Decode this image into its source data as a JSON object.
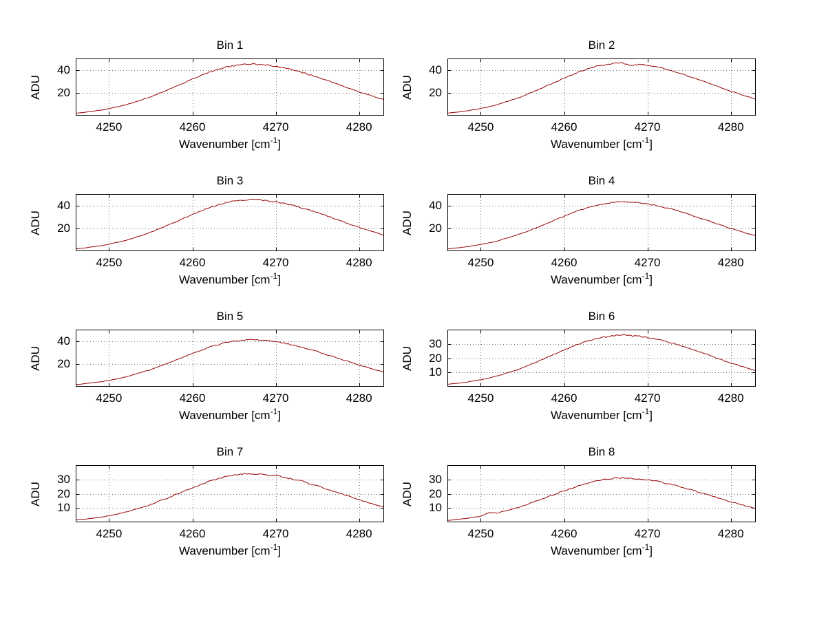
{
  "figure": {
    "background": "#ffffff",
    "axis_color": "#000000",
    "grid_color": "#6f6f6f",
    "line_color": "#990000",
    "ylabel": "ADU",
    "xlabel_main": "Wavenumber [cm",
    "xlabel_sup": "-1",
    "xlabel_close": "]"
  },
  "chart_data": {
    "type": "line",
    "layout": {
      "rows": 4,
      "cols": 2,
      "grid": "dotted",
      "legend": "none"
    },
    "xlim": [
      4246,
      4283
    ],
    "x_start": 4246,
    "x_step": 1,
    "xticks": [
      4250,
      4260,
      4270,
      4280
    ],
    "xlabel": "Wavenumber [cm^-1]",
    "ylabel": "ADU",
    "subplots": [
      {
        "title": "Bin 1",
        "ylim": [
          0,
          50
        ],
        "yticks": [
          20,
          40
        ],
        "peak_adu": 45,
        "y": [
          2.1,
          2.9,
          3.7,
          4.8,
          6.2,
          7.7,
          9.4,
          11.7,
          14.0,
          16.5,
          19.6,
          22.4,
          25.8,
          28.8,
          32.1,
          35.0,
          37.9,
          40.2,
          42.4,
          43.7,
          44.8,
          45.1,
          44.7,
          44.3,
          43.1,
          42.0,
          40.1,
          38.3,
          35.9,
          33.8,
          31.1,
          28.7,
          25.9,
          23.5,
          20.8,
          18.6,
          16.1,
          14.1
        ]
      },
      {
        "title": "Bin 2",
        "ylim": [
          0,
          50
        ],
        "yticks": [
          20,
          40
        ],
        "peak_adu": 46,
        "y": [
          2.2,
          3.0,
          3.8,
          4.9,
          6.3,
          7.8,
          9.6,
          12.0,
          14.3,
          16.9,
          20.0,
          22.9,
          26.4,
          29.4,
          32.9,
          35.7,
          38.8,
          41.1,
          43.3,
          44.7,
          45.8,
          46.1,
          43.4,
          45.1,
          44.3,
          42.7,
          41.2,
          39.0,
          36.9,
          34.3,
          31.8,
          29.3,
          26.5,
          24.0,
          21.3,
          19.0,
          16.5,
          14.4
        ]
      },
      {
        "title": "Bin 3",
        "ylim": [
          0,
          50
        ],
        "yticks": [
          20,
          40
        ],
        "peak_adu": 45,
        "y": [
          2.1,
          2.8,
          3.8,
          4.7,
          6.1,
          7.8,
          9.5,
          11.6,
          14.1,
          16.6,
          19.5,
          22.6,
          25.6,
          29.0,
          31.9,
          35.2,
          37.7,
          40.4,
          42.2,
          43.9,
          44.6,
          45.2,
          44.9,
          44.1,
          43.3,
          41.8,
          40.3,
          38.1,
          36.1,
          33.6,
          31.3,
          28.5,
          26.1,
          23.3,
          21.0,
          18.4,
          16.3,
          14.0
        ]
      },
      {
        "title": "Bin 4",
        "ylim": [
          0,
          50
        ],
        "yticks": [
          20,
          40
        ],
        "peak_adu": 43,
        "y": [
          2.0,
          2.7,
          3.6,
          4.6,
          5.9,
          7.3,
          9.0,
          11.2,
          13.4,
          15.8,
          18.7,
          21.4,
          24.7,
          27.5,
          30.7,
          33.4,
          36.3,
          38.4,
          40.5,
          41.8,
          42.8,
          43.1,
          42.7,
          42.3,
          41.2,
          40.1,
          38.3,
          36.6,
          34.3,
          32.3,
          29.7,
          27.4,
          24.7,
          22.5,
          19.9,
          17.8,
          15.4,
          13.5
        ]
      },
      {
        "title": "Bin 5",
        "ylim": [
          0,
          50
        ],
        "yticks": [
          20,
          40
        ],
        "peak_adu": 41,
        "y": [
          1.9,
          2.6,
          3.5,
          4.3,
          5.6,
          7.0,
          8.6,
          10.7,
          12.8,
          15.0,
          17.9,
          20.4,
          23.5,
          26.2,
          29.3,
          31.8,
          34.6,
          36.6,
          38.6,
          39.8,
          40.8,
          41.1,
          40.7,
          40.4,
          39.3,
          38.2,
          36.5,
          34.9,
          32.7,
          30.8,
          28.3,
          26.1,
          23.6,
          21.4,
          19.0,
          17.0,
          14.7,
          12.8
        ]
      },
      {
        "title": "Bin 6",
        "ylim": [
          0,
          40
        ],
        "yticks": [
          10,
          20,
          30
        ],
        "peak_adu": 36,
        "y": [
          1.7,
          2.3,
          3.0,
          3.9,
          4.9,
          6.1,
          7.5,
          9.4,
          11.2,
          13.2,
          15.7,
          17.9,
          20.7,
          23.0,
          25.7,
          27.9,
          30.4,
          32.1,
          33.9,
          34.9,
          35.8,
          36.1,
          35.7,
          35.5,
          34.5,
          33.6,
          32.0,
          30.7,
          28.7,
          27.0,
          24.8,
          23.0,
          20.7,
          18.8,
          16.6,
          14.9,
          12.9,
          11.3
        ]
      },
      {
        "title": "Bin 7",
        "ylim": [
          0,
          40
        ],
        "yticks": [
          10,
          20,
          30
        ],
        "peak_adu": 34,
        "y": [
          1.6,
          2.2,
          2.8,
          3.6,
          4.6,
          5.8,
          7.1,
          8.9,
          10.6,
          12.4,
          14.8,
          16.9,
          19.5,
          21.7,
          24.3,
          26.4,
          28.7,
          30.3,
          32.1,
          33.0,
          33.9,
          34.1,
          33.7,
          33.5,
          32.5,
          31.7,
          30.2,
          29.0,
          27.1,
          25.5,
          23.4,
          21.7,
          19.6,
          17.8,
          15.7,
          14.1,
          12.1,
          10.6
        ]
      },
      {
        "title": "Bin 8",
        "ylim": [
          0,
          40
        ],
        "yticks": [
          10,
          20,
          30
        ],
        "peak_adu": 31,
        "y": [
          1.4,
          1.9,
          2.5,
          3.3,
          4.2,
          6.8,
          6.5,
          8.1,
          9.6,
          11.3,
          13.5,
          15.4,
          17.8,
          19.8,
          22.2,
          24.0,
          26.2,
          27.6,
          29.2,
          30.1,
          30.9,
          31.1,
          30.7,
          30.5,
          29.7,
          29.0,
          27.6,
          26.4,
          24.7,
          23.2,
          21.4,
          19.8,
          17.8,
          16.2,
          14.3,
          12.8,
          11.1,
          9.7
        ]
      }
    ]
  }
}
